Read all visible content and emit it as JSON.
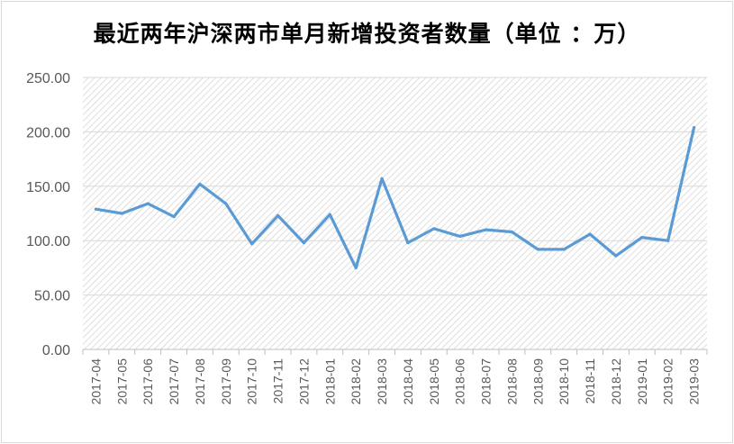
{
  "chart_data": {
    "type": "line",
    "title": "最近两年沪深两市单月新增投资者数量（单位 ：万）",
    "categories": [
      "2017-04",
      "2017-05",
      "2017-06",
      "2017-07",
      "2017-08",
      "2017-09",
      "2017-10",
      "2017-11",
      "2017-12",
      "2018-01",
      "2018-02",
      "2018-03",
      "2018-04",
      "2018-05",
      "2018-06",
      "2018-07",
      "2018-08",
      "2018-09",
      "2018-10",
      "2018-11",
      "2018-12",
      "2019-01",
      "2019-02",
      "2019-03"
    ],
    "series": [
      {
        "values": [
          129,
          125,
          134,
          122,
          152,
          134,
          97,
          123,
          98,
          124,
          75,
          157,
          98,
          111,
          104,
          110,
          108,
          92,
          92,
          106,
          86,
          103,
          100,
          204
        ],
        "color": "#5b9bd5"
      }
    ],
    "ylim": [
      0,
      250
    ],
    "yticks": [
      "0.00",
      "50.00",
      "100.00",
      "150.00",
      "200.00",
      "250.00"
    ],
    "xlabel": "",
    "ylabel": "",
    "grid": true,
    "legend": "none",
    "plot_background": "diagonal-hatch"
  }
}
